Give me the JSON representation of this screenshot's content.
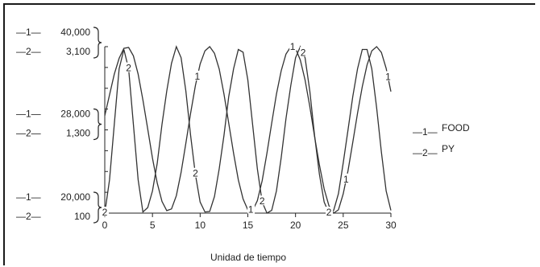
{
  "chart_data": {
    "type": "line",
    "xlabel": "Unidad de tiempo",
    "xlim": [
      0,
      30
    ],
    "x_ticks": [
      "0",
      "5",
      "10",
      "15",
      "20",
      "25",
      "30"
    ],
    "grid": false,
    "legend_placement": "right",
    "series": [
      {
        "name": "FOOD",
        "marker": "1",
        "ylim": [
          20000,
          40000
        ],
        "y_ticks": [
          "20,000",
          "28,000",
          "40,000"
        ],
        "x": [
          0,
          0.5,
          1,
          1.5,
          2,
          2.5,
          3,
          3.5,
          4,
          4.5,
          5,
          5.5,
          6,
          6.5,
          7,
          7.5,
          8,
          8.5,
          9,
          9.5,
          10,
          10.5,
          11,
          11.5,
          12,
          12.5,
          13,
          13.5,
          14,
          14.5,
          15,
          15.5,
          16,
          16.5,
          17,
          17.5,
          18,
          18.5,
          19,
          19.5,
          20,
          20.5,
          21,
          21.5,
          22,
          22.5,
          23,
          23.5,
          24,
          24.5,
          25,
          25.5,
          26,
          26.5,
          27,
          27.5,
          28,
          28.5,
          29,
          29.5,
          30
        ],
        "values": [
          31700,
          34200,
          36700,
          38600,
          39800,
          39900,
          38900,
          36700,
          33600,
          30100,
          26600,
          23600,
          21400,
          20300,
          20500,
          22100,
          24900,
          28400,
          32000,
          35300,
          37900,
          39500,
          40000,
          39200,
          37300,
          34300,
          30800,
          27200,
          24000,
          21700,
          20400,
          20300,
          21500,
          23900,
          27200,
          30800,
          34300,
          37100,
          39100,
          40000,
          39800,
          38400,
          36000,
          32800,
          29200,
          25800,
          22900,
          20900,
          20000,
          20400,
          22300,
          25100,
          28500,
          32000,
          35200,
          37800,
          39500,
          40000,
          39300,
          37400,
          34600
        ],
        "marker_x": [
          9.7,
          15.3,
          19.7,
          25.3,
          29.7
        ]
      },
      {
        "name": "PY",
        "marker": "2",
        "ylim": [
          100,
          3100
        ],
        "y_ticks": [
          "100",
          "1,300",
          "3,100"
        ],
        "x": [
          0,
          0.5,
          1,
          1.5,
          2,
          2.5,
          3,
          3.5,
          4,
          4.5,
          5,
          5.5,
          6,
          6.5,
          7,
          7.5,
          8,
          8.5,
          9,
          9.5,
          10,
          10.5,
          11,
          11.5,
          12,
          12.5,
          13,
          13.5,
          14,
          14.5,
          15,
          15.5,
          16,
          16.5,
          17,
          17.5,
          18,
          18.5,
          19,
          19.5,
          20,
          20.5,
          21,
          21.5,
          22,
          22.5,
          23,
          23.5,
          24,
          24.5,
          25,
          25.5,
          26,
          26.5,
          27,
          27.5,
          28,
          28.5,
          29,
          29.5,
          30
        ],
        "values": [
          100,
          700,
          1700,
          2700,
          3050,
          2700,
          1700,
          700,
          120,
          200,
          500,
          1000,
          1700,
          2300,
          2800,
          3100,
          2900,
          2300,
          1500,
          800,
          300,
          120,
          130,
          400,
          900,
          1500,
          2200,
          2700,
          3050,
          3000,
          2500,
          1700,
          900,
          300,
          100,
          150,
          500,
          1100,
          1800,
          2400,
          2900,
          3100,
          2900,
          2300,
          1500,
          800,
          300,
          100,
          150,
          450,
          1000,
          1600,
          2200,
          2700,
          3050,
          3050,
          2700,
          2000,
          1200,
          500,
          150
        ],
        "marker_x": [
          0,
          2.5,
          9.5,
          16.5,
          20.8,
          23.5
        ]
      }
    ]
  }
}
